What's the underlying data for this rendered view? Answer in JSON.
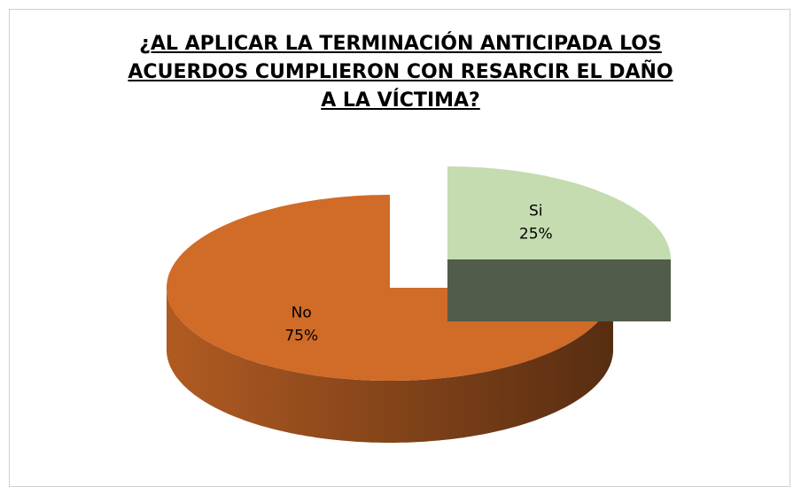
{
  "chart_data": {
    "type": "pie",
    "title": "¿AL APLICAR LA TERMINACIÓN ANTICIPADA LOS ACUERDOS CUMPLIERON CON RESARCIR EL DAÑO A LA VÍCTIMA?",
    "categories": [
      "Si",
      "No"
    ],
    "values": [
      25,
      75
    ],
    "value_labels": [
      "25%",
      "75%"
    ],
    "colors": [
      "#c4dcb0",
      "#d06b28"
    ]
  }
}
